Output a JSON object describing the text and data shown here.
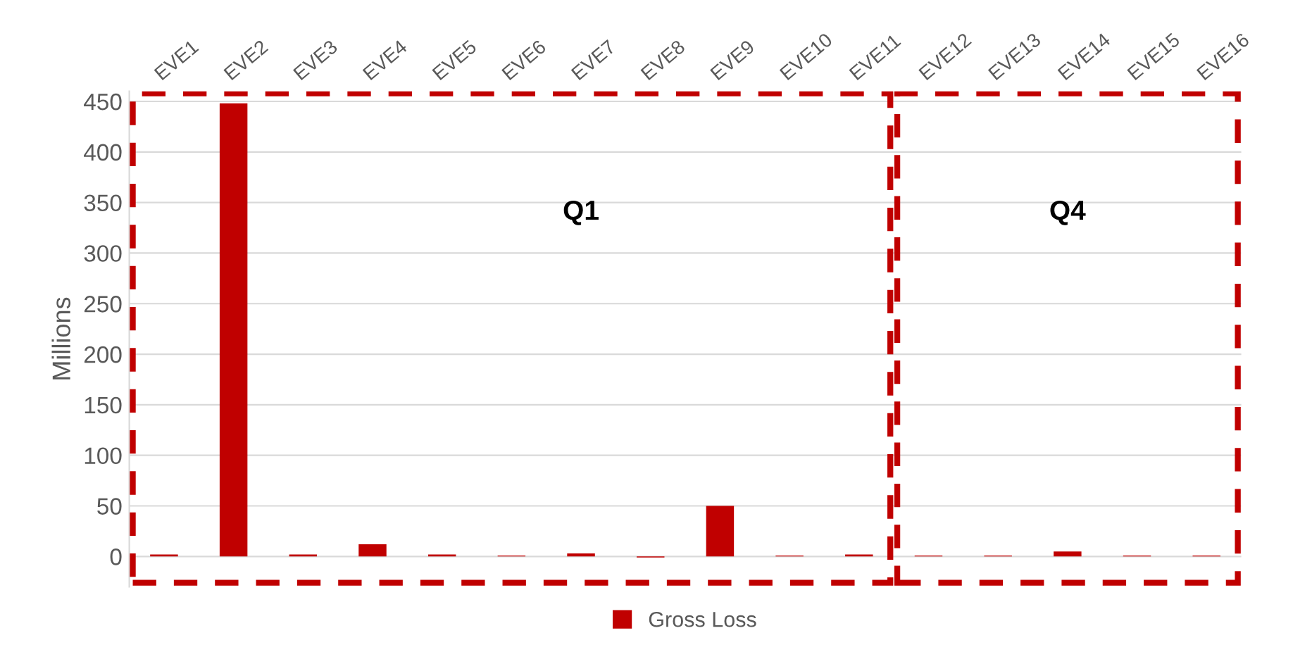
{
  "chart_data": {
    "type": "bar",
    "ylabel": "Millions",
    "categories": [
      "EVE1",
      "EVE2",
      "EVE3",
      "EVE4",
      "EVE5",
      "EVE6",
      "EVE7",
      "EVE8",
      "EVE9",
      "EVE10",
      "EVE11",
      "EVE12",
      "EVE13",
      "EVE14",
      "EVE15",
      "EVE16"
    ],
    "series": [
      {
        "name": "Gross Loss",
        "color": "#c00000",
        "values": [
          2,
          448,
          2,
          12,
          2,
          1,
          3,
          -1,
          50,
          1,
          2,
          1,
          1,
          5,
          1,
          1
        ]
      }
    ],
    "ylim": [
      -30,
      460
    ],
    "yticks": [
      0,
      50,
      100,
      150,
      200,
      250,
      300,
      350,
      400,
      450
    ],
    "grid": "y",
    "legend": "bottom",
    "annotations": [
      "Q1",
      "Q4"
    ]
  }
}
